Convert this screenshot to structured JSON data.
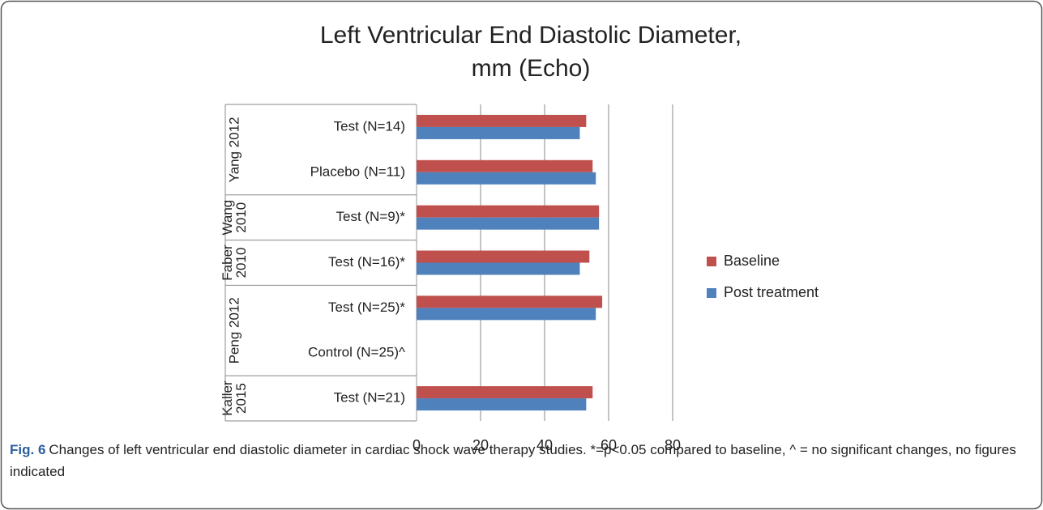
{
  "chart_data": {
    "type": "hbar",
    "title": [
      "Left Ventricular End Diastolic Diameter,",
      "mm (Echo)"
    ],
    "groups": [
      {
        "label": [
          "Yang 2012"
        ],
        "categories": [
          "Test (N=14)",
          "Placebo (N=11)"
        ]
      },
      {
        "label": [
          "Wang",
          "2010"
        ],
        "categories": [
          "Test (N=9)*"
        ]
      },
      {
        "label": [
          "Faber",
          "2010"
        ],
        "categories": [
          "Test (N=16)*"
        ]
      },
      {
        "label": [
          "Peng 2012"
        ],
        "categories": [
          "Test (N=25)*",
          "Control (N=25)^"
        ]
      },
      {
        "label": [
          "Kaller",
          "2015"
        ],
        "categories": [
          "Test (N=21)"
        ]
      }
    ],
    "series": [
      {
        "name": "Baseline",
        "color": "#c0504d",
        "values": [
          53,
          55,
          57,
          54,
          58,
          null,
          55
        ]
      },
      {
        "name": "Post treatment",
        "color": "#4f81bd",
        "values": [
          51,
          56,
          57,
          51,
          56,
          null,
          53
        ]
      }
    ],
    "xlim": [
      0,
      80
    ],
    "xticks": [
      0,
      20,
      40,
      60,
      80
    ],
    "grid": true,
    "legend": "right",
    "caption": {
      "label": "Fig. 6",
      "text": "Changes of left ventricular end diastolic diameter in cardiac shock wave therapy studies. *=p<0.05 compared to baseline, ^ = no significant changes, no figures indicated"
    }
  }
}
